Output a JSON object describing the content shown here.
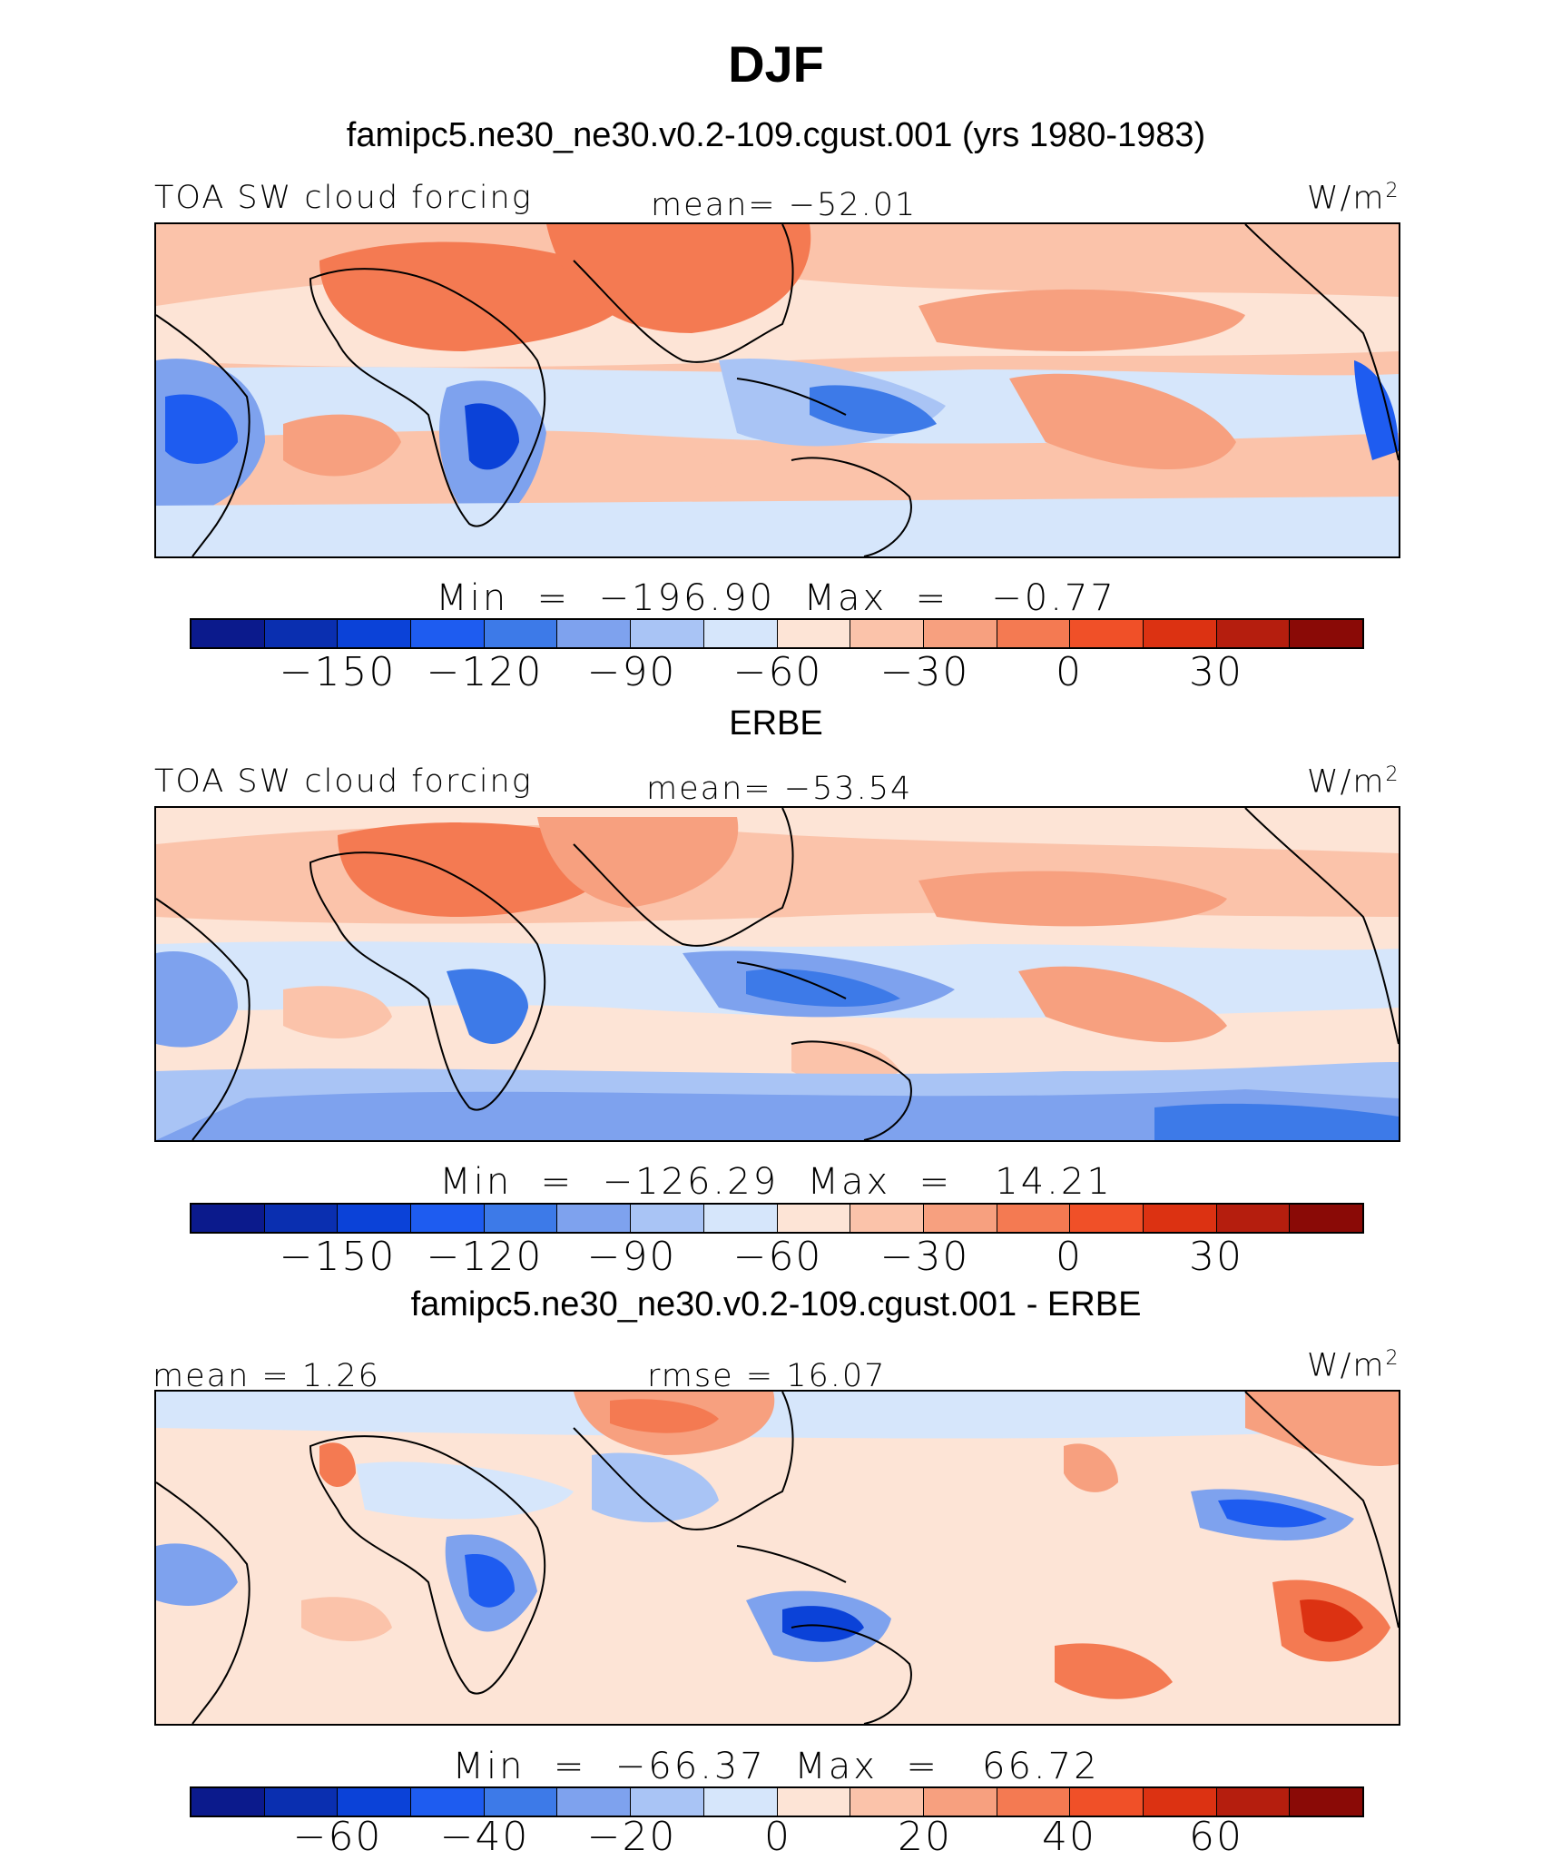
{
  "figure": {
    "title": "DJF",
    "subtitle": "famipc5.ne30_ne30.v0.2-109.cgust.001 (yrs 1980-1983)"
  },
  "palette": [
    "#0b1a8c",
    "#0a2fb0",
    "#0b42d8",
    "#1e5cf0",
    "#3d7ae8",
    "#7ea2ee",
    "#a9c4f5",
    "#d6e6fb",
    "#fde4d6",
    "#fbc3aa",
    "#f7a07f",
    "#f47a52",
    "#f05028",
    "#dc3212",
    "#b51e0e",
    "#8a0a06"
  ],
  "panels": [
    {
      "label_left": "TOA SW cloud forcing",
      "label_center": "mean= −52.01",
      "unit_base": "W/m",
      "unit_sup": "2",
      "minmax": "Min  =  −196.90  Max  =   −0.77",
      "ticks": [
        "−150",
        "−120",
        "−90",
        "−60",
        "−30",
        "0",
        "30"
      ]
    },
    {
      "heading": "ERBE",
      "label_left": "TOA SW cloud forcing",
      "label_center": "mean= −53.54",
      "unit_base": "W/m",
      "unit_sup": "2",
      "minmax": "Min  =  −126.29  Max  =   14.21",
      "ticks": [
        "−150",
        "−120",
        "−90",
        "−60",
        "−30",
        "0",
        "30"
      ]
    },
    {
      "heading": "famipc5.ne30_ne30.v0.2-109.cgust.001 - ERBE",
      "label_left": "mean =    1.26",
      "label_center": "rmse  =   16.07",
      "unit_base": "W/m",
      "unit_sup": "2",
      "minmax": "Min  =  −66.37  Max  =   66.72",
      "ticks": [
        "−60",
        "−40",
        "−20",
        "0",
        "20",
        "40",
        "60"
      ]
    }
  ]
}
